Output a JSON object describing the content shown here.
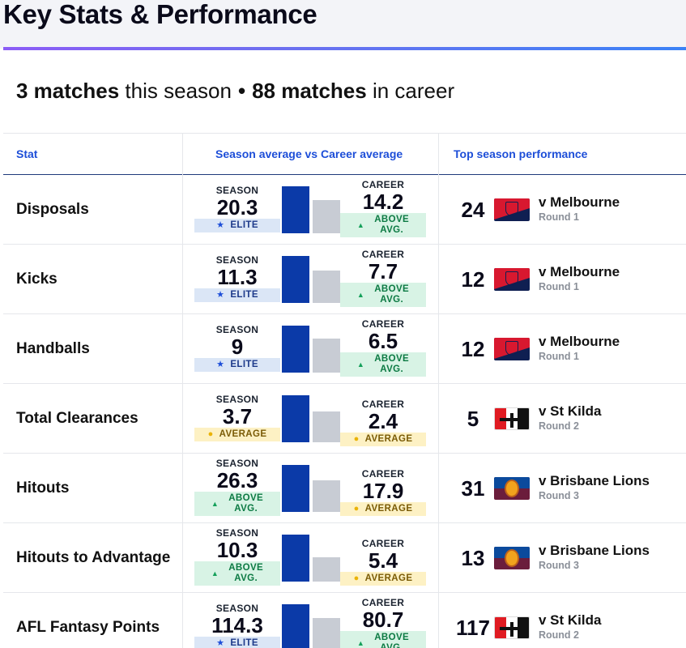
{
  "title": "Key Stats & Performance",
  "summary": {
    "season_count": "3 matches",
    "season_text": "this season",
    "separator": "•",
    "career_count": "88 matches",
    "career_text": "in career"
  },
  "headers": {
    "stat": "Stat",
    "avg": "Season average vs Career average",
    "top": "Top season performance"
  },
  "labels": {
    "season": "SEASON",
    "career": "CAREER"
  },
  "colors": {
    "season_bar": "#0b3aa8",
    "career_bar": "#c8ccd4",
    "accent": "#1d4ed8"
  },
  "rows": [
    {
      "stat": "Disposals",
      "season": "20.3",
      "career": "14.2",
      "season_badge": {
        "type": "elite",
        "text": "ELITE"
      },
      "career_badge": {
        "type": "above",
        "l1": "ABOVE",
        "l2": "AVG."
      },
      "top_value": "24",
      "opponent": "v Melbourne",
      "round": "Round 1",
      "logo": "melbourne-logo"
    },
    {
      "stat": "Kicks",
      "season": "11.3",
      "career": "7.7",
      "season_badge": {
        "type": "elite",
        "text": "ELITE"
      },
      "career_badge": {
        "type": "above",
        "l1": "ABOVE",
        "l2": "AVG."
      },
      "top_value": "12",
      "opponent": "v Melbourne",
      "round": "Round 1",
      "logo": "melbourne-logo"
    },
    {
      "stat": "Handballs",
      "season": "9",
      "career": "6.5",
      "season_badge": {
        "type": "elite",
        "text": "ELITE"
      },
      "career_badge": {
        "type": "above",
        "l1": "ABOVE",
        "l2": "AVG."
      },
      "top_value": "12",
      "opponent": "v Melbourne",
      "round": "Round 1",
      "logo": "melbourne-logo"
    },
    {
      "stat": "Total Clearances",
      "season": "3.7",
      "career": "2.4",
      "season_badge": {
        "type": "average",
        "text": "AVERAGE"
      },
      "career_badge": {
        "type": "average",
        "text": "AVERAGE"
      },
      "top_value": "5",
      "opponent": "v St Kilda",
      "round": "Round 2",
      "logo": "st-kilda-logo"
    },
    {
      "stat": "Hitouts",
      "season": "26.3",
      "career": "17.9",
      "season_badge": {
        "type": "above",
        "l1": "ABOVE",
        "l2": "AVG."
      },
      "career_badge": {
        "type": "average",
        "text": "AVERAGE"
      },
      "top_value": "31",
      "opponent": "v Brisbane Lions",
      "round": "Round 3",
      "logo": "brisbane-lions-logo"
    },
    {
      "stat": "Hitouts to Advantage",
      "season": "10.3",
      "career": "5.4",
      "season_badge": {
        "type": "above",
        "l1": "ABOVE",
        "l2": "AVG."
      },
      "career_badge": {
        "type": "average",
        "text": "AVERAGE"
      },
      "top_value": "13",
      "opponent": "v Brisbane Lions",
      "round": "Round 3",
      "logo": "brisbane-lions-logo"
    },
    {
      "stat": "AFL Fantasy Points",
      "season": "114.3",
      "career": "80.7",
      "season_badge": {
        "type": "elite",
        "text": "ELITE"
      },
      "career_badge": {
        "type": "above",
        "l1": "ABOVE",
        "l2": "AVG."
      },
      "top_value": "117",
      "opponent": "v St Kilda",
      "round": "Round 2",
      "logo": "st-kilda-logo"
    }
  ]
}
